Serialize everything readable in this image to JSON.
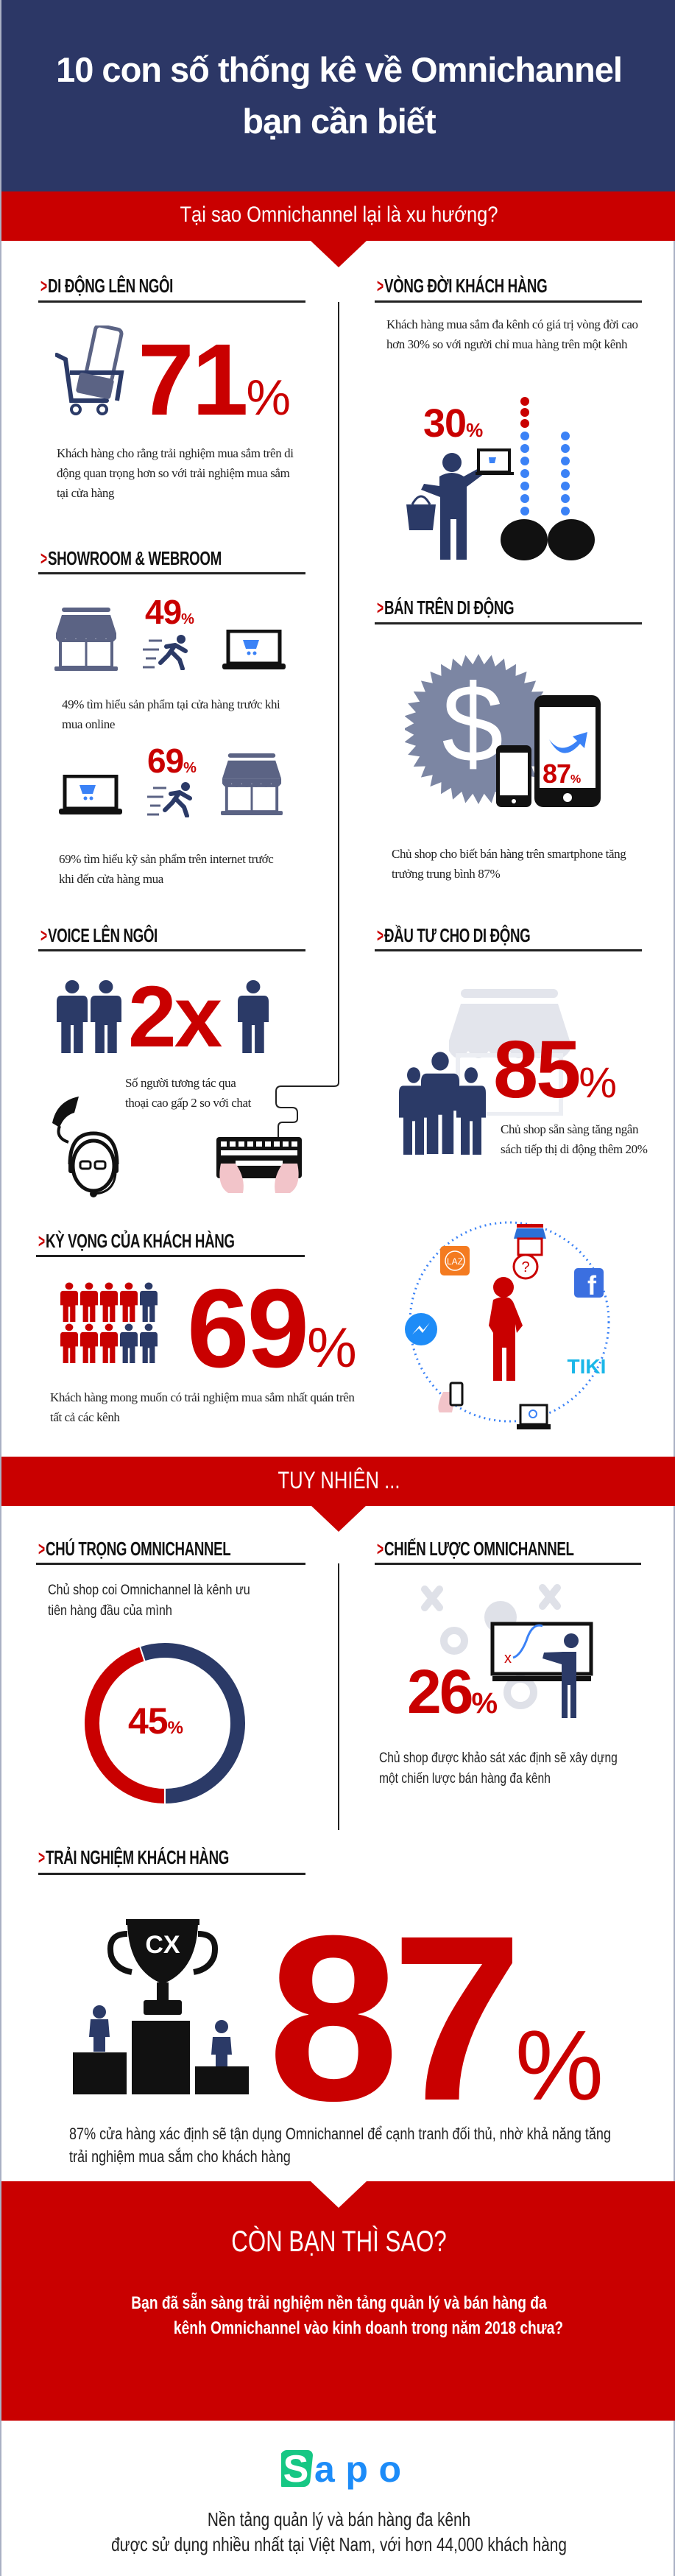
{
  "header": {
    "title_line1": "10 con số thống kê về Omnichannel",
    "title_line2": "bạn cần biết",
    "subtitle": "Tại sao Omnichannel lại là xu hướng?"
  },
  "colors": {
    "navy": "#2c3766",
    "red": "#c90000",
    "icon_navy": "#2b3a67",
    "icon_gray": "#7c86a3",
    "accent_blue": "#3b82f6"
  },
  "sections": {
    "mobile": {
      "heading": "DI ĐỘNG LÊN NGÔI",
      "stat": "71",
      "pct": "%",
      "desc": "Khách hàng cho rằng trải nghiệm mua sắm trên di động quan trọng hơn so với trải nghiệm mua sắm tại cửa hàng",
      "icon": "shopping-cart-phone-icon"
    },
    "lifecycle": {
      "heading": "VÒNG ĐỜI KHÁCH HÀNG",
      "stat": "30",
      "pct": "%",
      "desc": "Khách hàng mua sắm đa kênh có giá trị vòng đời cao hơn 30% so với người chỉ mua hàng trên một kênh"
    },
    "showroom": {
      "heading": "SHOWROOM & WEBROOM",
      "stat1": "49",
      "stat2": "69",
      "pct": "%",
      "desc1": "49% tìm hiểu sản phẩm tại cửa hàng trước khi mua online",
      "desc2": "69% tìm hiểu kỹ sản phẩm trên internet trước khi đến cửa hàng mua"
    },
    "mobile_sales": {
      "heading": "BÁN TRÊN DI ĐỘNG",
      "stat": "87",
      "pct": "%",
      "desc": "Chủ shop cho biết bán hàng trên smartphone tăng trưởng trung bình 87%"
    },
    "voice": {
      "heading": "VOICE LÊN NGÔI",
      "stat": "2x",
      "desc": "Số người tương tác qua thoại cao gấp 2 so với chat"
    },
    "invest": {
      "heading": "ĐẦU TƯ CHO DI ĐỘNG",
      "stat": "85",
      "pct": "%",
      "desc": "Chủ shop sẵn sàng tăng ngân sách tiếp thị di động thêm 20%"
    },
    "expectation": {
      "heading": "KỲ VỌNG CỦA KHÁCH HÀNG",
      "stat": "69",
      "pct": "%",
      "desc": "Khách hàng mong muốn có trải nghiệm mua sắm nhất quán trên tất cả các kênh",
      "channels": [
        "store",
        "lazada",
        "facebook",
        "messenger",
        "tiki",
        "mobile",
        "laptop"
      ],
      "laz_label": "LAZ",
      "tiki_label": "TIKI",
      "people_highlighted": 7,
      "people_total": 10
    }
  },
  "however": {
    "label": "TUY NHIÊN ..."
  },
  "focus": {
    "heading": "CHÚ TRỌNG OMNICHANNEL",
    "desc": "Chủ shop coi Omnichannel là kênh ưu tiên hàng đầu của mình",
    "stat": "45",
    "pct": "%",
    "donut_value": 45
  },
  "strategy": {
    "heading": "CHIẾN LƯỢC OMNICHANNEL",
    "stat": "26",
    "pct": "%",
    "desc": "Chủ shop được khảo sát xác định sẽ xây dựng một chiến lược bán hàng đa kênh"
  },
  "cx": {
    "heading": "TRẢI NGHIỆM KHÁCH HÀNG",
    "stat": "87",
    "pct": "%",
    "trophy_label": "CX",
    "desc": "87% cửa hàng xác định sẽ tận dụng Omnichannel để cạnh tranh đối thủ, nhờ khả năng tăng trải nghiệm mua sắm cho khách hàng"
  },
  "cta": {
    "title": "CÒN BẠN THÌ SAO?",
    "line1": "Bạn đã sẵn sàng trải nghiệm nền tảng quản lý và bán hàng đa",
    "line2": "kênh Omnichannel vào kinh doanh trong năm 2018 chưa?"
  },
  "footer": {
    "logo_text": "Sapo",
    "line1": "Nền tảng quản lý và bán hàng đa kênh",
    "line2": "được sử dụng nhiều nhất tại Việt Nam, với hơn 44,000 khách hàng"
  }
}
